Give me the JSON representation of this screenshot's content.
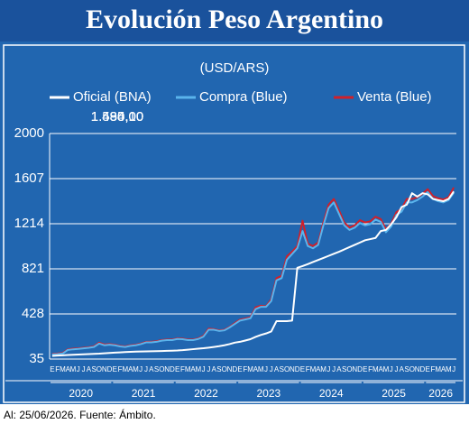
{
  "chart_data": {
    "type": "line",
    "title": "Evolución Peso Argentino",
    "subtitle": "(USD/ARS)",
    "footer": "Al: 25/06/2026. Fuente: Ámbito.",
    "categories": [
      "E",
      "F",
      "M",
      "A",
      "M",
      "J",
      "J",
      "A",
      "S",
      "O",
      "N",
      "D",
      "E",
      "F",
      "M",
      "A",
      "M",
      "J",
      "J",
      "A",
      "S",
      "O",
      "N",
      "D",
      "E",
      "F",
      "M",
      "A",
      "M",
      "J",
      "J",
      "A",
      "S",
      "O",
      "N",
      "D",
      "E",
      "F",
      "M",
      "A",
      "M",
      "J",
      "J",
      "A",
      "S",
      "O",
      "N",
      "D",
      "E",
      "F",
      "M",
      "A",
      "M",
      "J",
      "J",
      "A",
      "S",
      "O",
      "N",
      "D",
      "E",
      "F",
      "M",
      "A",
      "M",
      "J",
      "J",
      "A",
      "S",
      "O",
      "N",
      "D",
      "E",
      "F",
      "M",
      "A",
      "M",
      "J"
    ],
    "years": [
      "2020",
      "2021",
      "2022",
      "2023",
      "2024",
      "2025",
      "2026"
    ],
    "ylim": [
      35,
      2000
    ],
    "yticks": [
      35,
      428,
      821,
      1214,
      1607,
      2000
    ],
    "grid": true,
    "series": [
      {
        "name": "Venta (Blue)",
        "color": "#d0202a",
        "last": "1.530,00",
        "values": [
          80,
          83,
          88,
          120,
          125,
          128,
          133,
          138,
          146,
          178,
          162,
          166,
          160,
          150,
          145,
          155,
          160,
          170,
          185,
          185,
          190,
          200,
          205,
          205,
          215,
          213,
          205,
          205,
          215,
          238,
          300,
          295,
          285,
          290,
          315,
          348,
          378,
          388,
          398,
          485,
          500,
          495,
          555,
          740,
          760,
          930,
          970,
          1020,
          1240,
          1040,
          1020,
          1050,
          1225,
          1380,
          1430,
          1330,
          1225,
          1180,
          1200,
          1245,
          1225,
          1235,
          1275,
          1255,
          1165,
          1215,
          1315,
          1345,
          1430,
          1430,
          1445,
          1475,
          1515,
          1455,
          1435,
          1425,
          1445,
          1530
        ]
      },
      {
        "name": "Compra (Blue)",
        "color": "#5ab4ec",
        "last": "1.484,10",
        "values": [
          75,
          78,
          83,
          115,
          120,
          123,
          128,
          133,
          140,
          170,
          155,
          160,
          155,
          145,
          140,
          150,
          155,
          165,
          180,
          180,
          185,
          195,
          200,
          200,
          210,
          208,
          200,
          200,
          210,
          230,
          290,
          290,
          280,
          285,
          310,
          340,
          370,
          380,
          390,
          470,
          490,
          490,
          540,
          720,
          740,
          900,
          950,
          1000,
          1150,
          1020,
          1000,
          1030,
          1200,
          1350,
          1400,
          1300,
          1200,
          1160,
          1180,
          1220,
          1200,
          1210,
          1250,
          1230,
          1140,
          1190,
          1290,
          1320,
          1400,
          1400,
          1420,
          1450,
          1490,
          1430,
          1410,
          1400,
          1420,
          1484.1
        ]
      },
      {
        "name": "Oficial (BNA)",
        "color": "#ffffff",
        "last": "1.495,00",
        "values": [
          63,
          65,
          67,
          70,
          72,
          74,
          76,
          78,
          80,
          82,
          85,
          88,
          91,
          93,
          96,
          98,
          100,
          101,
          102,
          103,
          104,
          105,
          107,
          108,
          110,
          113,
          117,
          121,
          125,
          129,
          134,
          140,
          147,
          155,
          165,
          178,
          185,
          196,
          208,
          228,
          245,
          258,
          275,
          365,
          365,
          365,
          370,
          830,
          845,
          862,
          880,
          898,
          916,
          934,
          952,
          970,
          990,
          1010,
          1030,
          1050,
          1070,
          1080,
          1090,
          1150,
          1160,
          1210,
          1270,
          1360,
          1380,
          1480,
          1450,
          1480,
          1470,
          1430,
          1420,
          1410,
          1430,
          1495
        ]
      }
    ]
  }
}
